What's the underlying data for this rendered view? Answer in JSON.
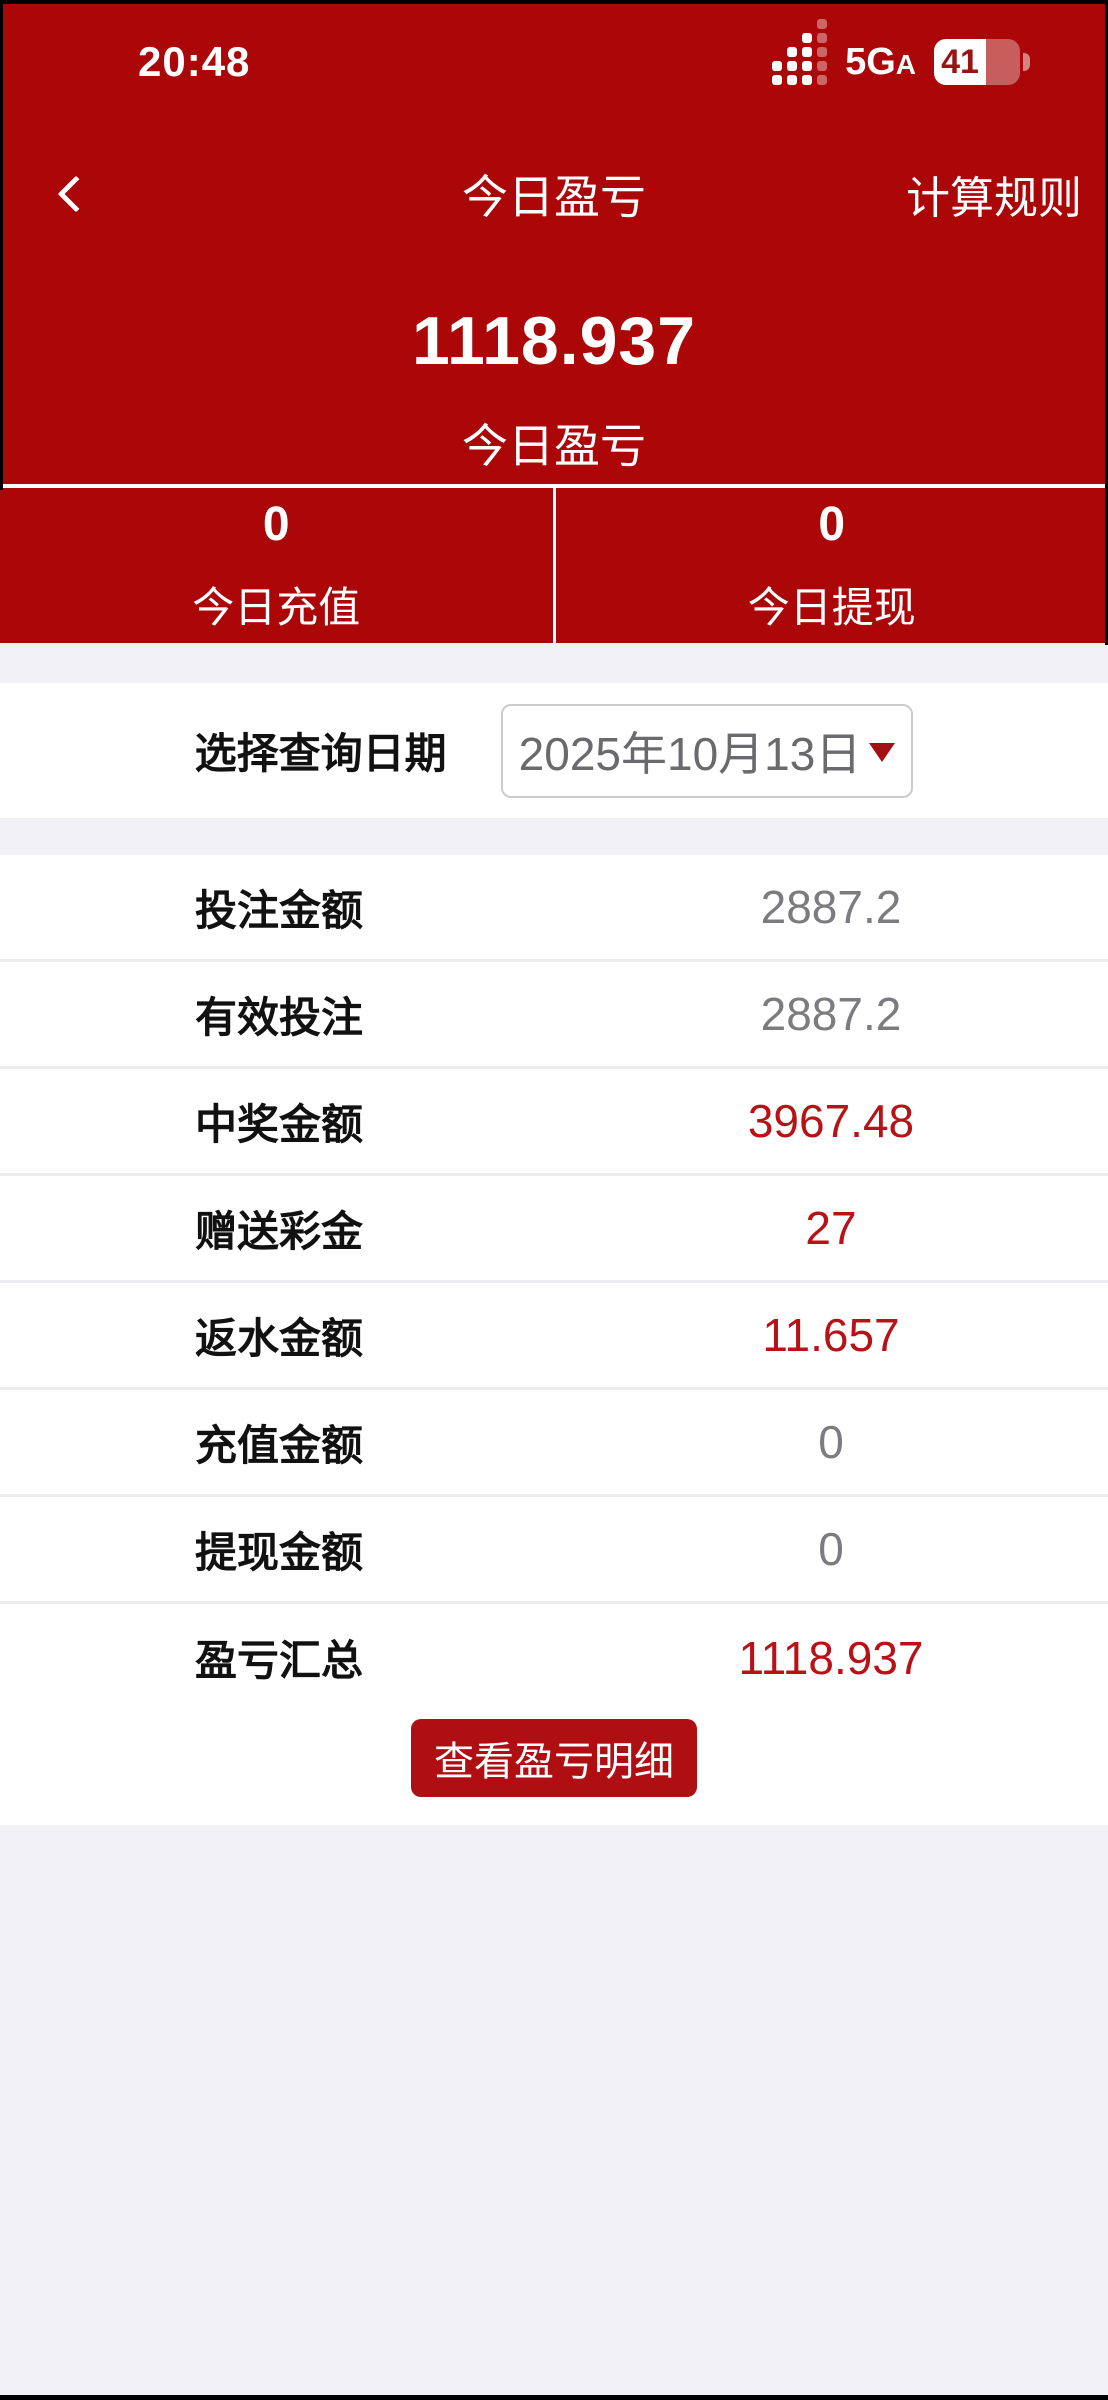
{
  "colors": {
    "header_red": "#AB0709",
    "accent_red": "#B81217",
    "value_gray": "#7C7C80",
    "button_red": "#AF0E12"
  },
  "status_bar": {
    "time": "20:48",
    "network": "5G",
    "network_sub": "A",
    "battery_level": "41",
    "signal_icon": "cellular-signal-bars-icon",
    "battery_icon": "battery-icon"
  },
  "nav": {
    "title": "今日盈亏",
    "rules_label": "计算规则",
    "back_icon": "chevron-left-icon"
  },
  "summary": {
    "amount": "1118.937",
    "amount_label": "今日盈亏",
    "recharge": {
      "value": "0",
      "label": "今日充值"
    },
    "withdraw": {
      "value": "0",
      "label": "今日提现"
    }
  },
  "date_filter": {
    "label": "选择查询日期",
    "value": "2025年10月13日",
    "dropdown_icon": "triangle-down-icon"
  },
  "table": {
    "rows": [
      {
        "label": "投注金额",
        "value": "2887.2",
        "value_color": "#7C7C80"
      },
      {
        "label": "有效投注",
        "value": "2887.2",
        "value_color": "#7C7C80"
      },
      {
        "label": "中奖金额",
        "value": "3967.48",
        "value_color": "#B81217"
      },
      {
        "label": "赠送彩金",
        "value": "27",
        "value_color": "#B81217"
      },
      {
        "label": "返水金额",
        "value": "11.657",
        "value_color": "#B81217"
      },
      {
        "label": "充值金额",
        "value": "0",
        "value_color": "#7C7C80"
      },
      {
        "label": "提现金额",
        "value": "0",
        "value_color": "#7C7C80"
      },
      {
        "label": "盈亏汇总",
        "value": "1118.937",
        "value_color": "#B81217"
      }
    ]
  },
  "actions": {
    "detail_button": "查看盈亏明细"
  }
}
